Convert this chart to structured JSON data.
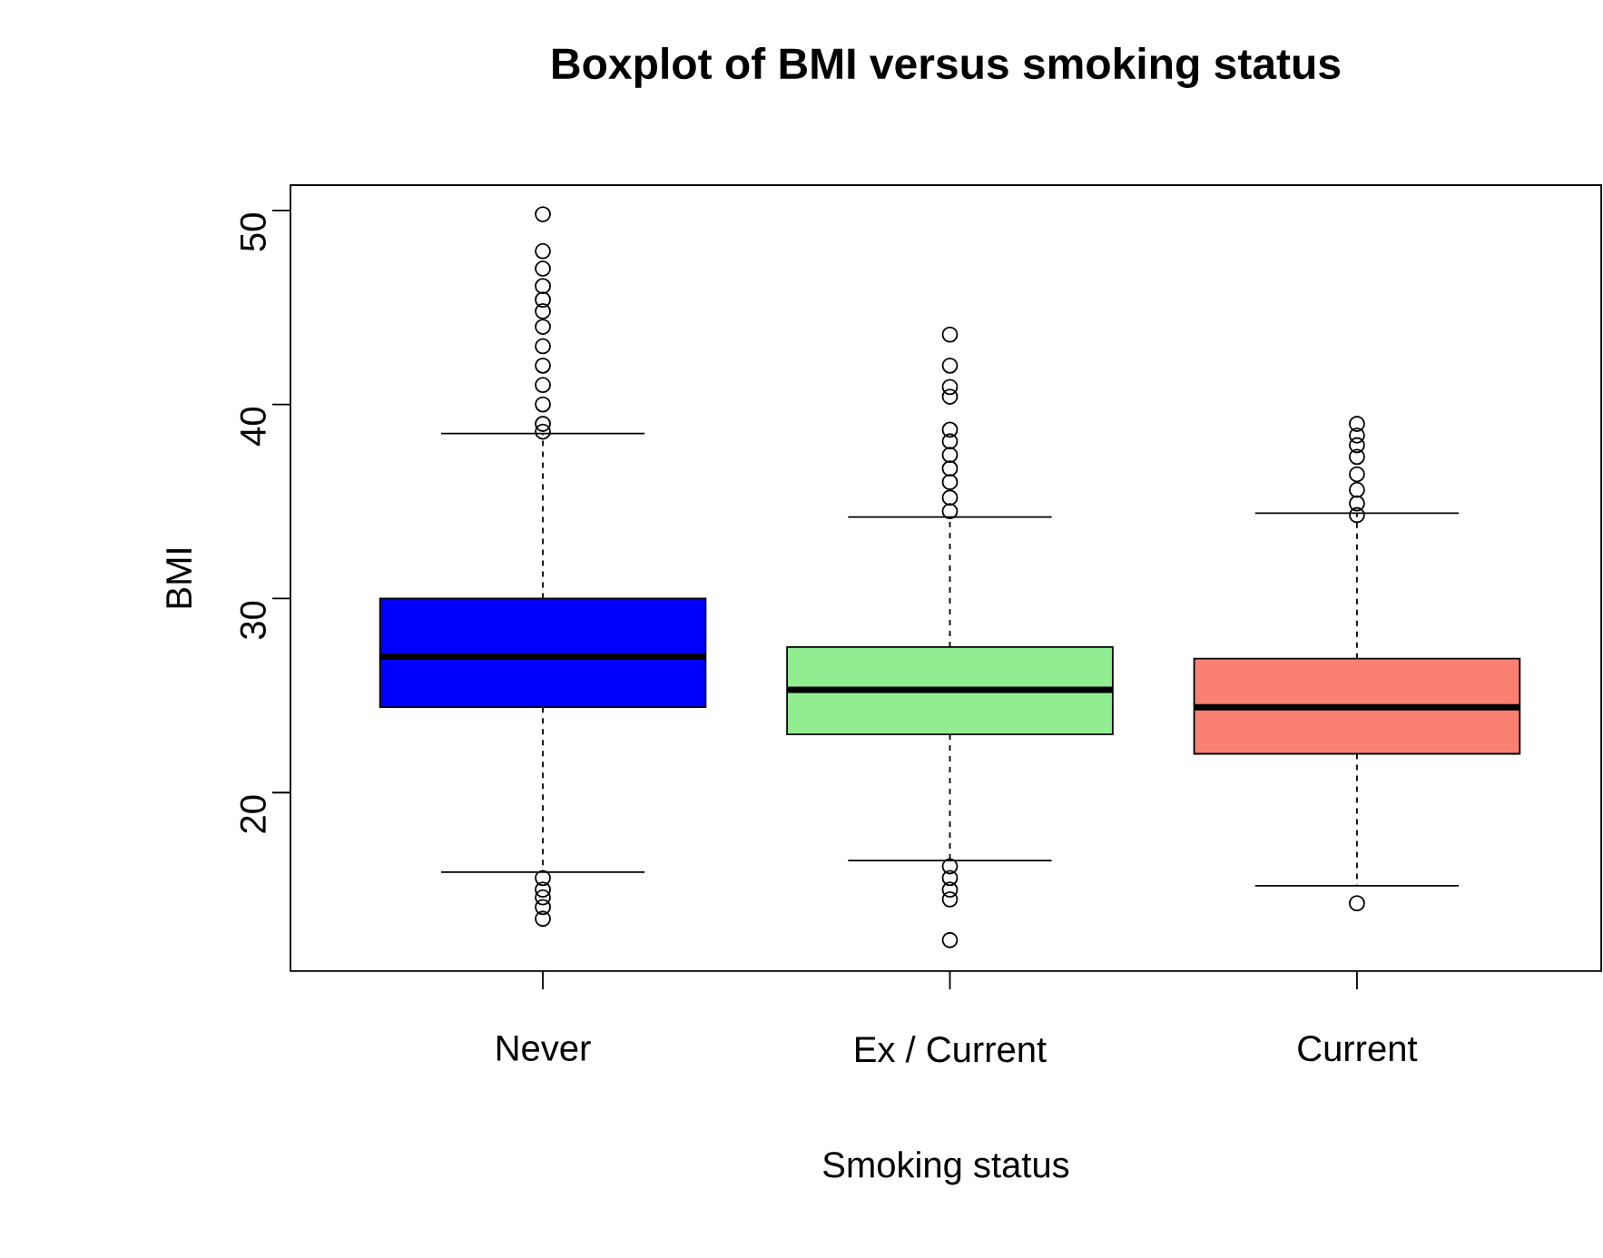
{
  "chart_data": {
    "type": "box",
    "title": "Boxplot of BMI versus smoking status",
    "xlabel": "Smoking status",
    "ylabel": "BMI",
    "categories": [
      "Never",
      "Ex / Current",
      "Current"
    ],
    "colors": [
      "#0000ff",
      "#90ee90",
      "#fa8072"
    ],
    "ylim": [
      10.8,
      51.3
    ],
    "yticks": [
      20,
      30,
      40,
      50
    ],
    "marker": "circle",
    "boxes": [
      {
        "low": 15.9,
        "q1": 24.4,
        "median": 27.0,
        "q3": 30.0,
        "high": 38.5,
        "outliers": [
          49.8,
          47.9,
          47.0,
          46.1,
          45.4,
          44.8,
          44.0,
          43.0,
          42.0,
          41.0,
          40.0,
          39.0,
          38.6,
          15.6,
          15.0,
          14.6,
          14.1,
          13.5
        ]
      },
      {
        "low": 16.5,
        "q1": 23.0,
        "median": 25.3,
        "q3": 27.5,
        "high": 34.2,
        "outliers": [
          43.6,
          42.0,
          40.9,
          40.4,
          38.7,
          38.1,
          37.4,
          36.7,
          36.0,
          35.2,
          34.5,
          16.2,
          15.6,
          15.0,
          14.5,
          12.4
        ]
      },
      {
        "low": 15.2,
        "q1": 22.0,
        "median": 24.4,
        "q3": 26.9,
        "high": 34.4,
        "outliers": [
          39.0,
          38.4,
          37.9,
          37.3,
          36.4,
          35.6,
          34.9,
          34.3,
          14.3
        ]
      }
    ]
  }
}
